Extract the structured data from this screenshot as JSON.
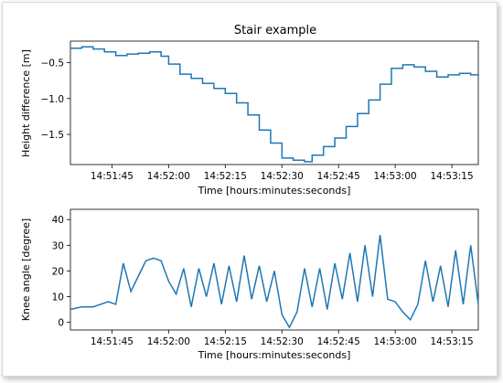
{
  "chart_data": [
    {
      "type": "line",
      "title": "Stair example",
      "xlabel": "Time [hours:minutes:seconds]",
      "ylabel": "Height difference [m]",
      "x_range_seconds": [
        "14:51:34",
        "14:53:22"
      ],
      "ylim": [
        -1.92,
        -0.2
      ],
      "xticks": [
        "14:51:45",
        "14:52:00",
        "14:52:15",
        "14:52:30",
        "14:52:45",
        "14:53:00",
        "14:53:15"
      ],
      "yticks": [
        -0.5,
        -1.0,
        -1.5
      ],
      "ytick_labels": [
        "−0.5",
        "−1.0",
        "−1.5"
      ],
      "grid": false,
      "color": "#1f77b4",
      "x": [
        "14:51:34",
        "14:51:37",
        "14:51:40",
        "14:51:43",
        "14:51:46",
        "14:51:49",
        "14:51:52",
        "14:51:55",
        "14:51:58",
        "14:52:00",
        "14:52:03",
        "14:52:06",
        "14:52:09",
        "14:52:12",
        "14:52:15",
        "14:52:18",
        "14:52:21",
        "14:52:24",
        "14:52:27",
        "14:52:30",
        "14:52:33",
        "14:52:36",
        "14:52:38",
        "14:52:41",
        "14:52:44",
        "14:52:47",
        "14:52:50",
        "14:52:53",
        "14:52:56",
        "14:52:59",
        "14:53:02",
        "14:53:05",
        "14:53:08",
        "14:53:11",
        "14:53:14",
        "14:53:17",
        "14:53:20",
        "14:53:22"
      ],
      "y": [
        -0.3,
        -0.28,
        -0.31,
        -0.35,
        -0.4,
        -0.38,
        -0.37,
        -0.35,
        -0.41,
        -0.52,
        -0.66,
        -0.72,
        -0.79,
        -0.86,
        -0.93,
        -1.06,
        -1.23,
        -1.44,
        -1.62,
        -1.83,
        -1.86,
        -1.88,
        -1.79,
        -1.67,
        -1.55,
        -1.39,
        -1.21,
        -1.02,
        -0.8,
        -0.58,
        -0.53,
        -0.56,
        -0.62,
        -0.7,
        -0.67,
        -0.65,
        -0.67,
        -0.69
      ]
    },
    {
      "type": "line",
      "title": "",
      "xlabel": "Time [hours:minutes:seconds]",
      "ylabel": "Knee angle [degree]",
      "x_range_seconds": [
        "14:51:34",
        "14:53:22"
      ],
      "ylim": [
        -3,
        44
      ],
      "xticks": [
        "14:51:45",
        "14:52:00",
        "14:52:15",
        "14:52:30",
        "14:52:45",
        "14:53:00",
        "14:53:15"
      ],
      "yticks": [
        0,
        10,
        20,
        30,
        40
      ],
      "ytick_labels": [
        "0",
        "10",
        "20",
        "30",
        "40"
      ],
      "grid": false,
      "color": "#1f77b4",
      "x": [
        "14:51:34",
        "14:51:37",
        "14:51:40",
        "14:51:42",
        "14:51:44",
        "14:51:46",
        "14:51:48",
        "14:51:50",
        "14:51:52",
        "14:51:54",
        "14:51:56",
        "14:51:58",
        "14:52:00",
        "14:52:02",
        "14:52:04",
        "14:52:06",
        "14:52:08",
        "14:52:10",
        "14:52:12",
        "14:52:14",
        "14:52:16",
        "14:52:18",
        "14:52:20",
        "14:52:22",
        "14:52:24",
        "14:52:26",
        "14:52:28",
        "14:52:30",
        "14:52:32",
        "14:52:34",
        "14:52:36",
        "14:52:38",
        "14:52:40",
        "14:52:42",
        "14:52:44",
        "14:52:46",
        "14:52:48",
        "14:52:50",
        "14:52:52",
        "14:52:54",
        "14:52:56",
        "14:52:58",
        "14:53:00",
        "14:53:02",
        "14:53:04",
        "14:53:06",
        "14:53:08",
        "14:53:10",
        "14:53:12",
        "14:53:14",
        "14:53:16",
        "14:53:18",
        "14:53:20",
        "14:53:22"
      ],
      "y": [
        5,
        6,
        6,
        7,
        8,
        7,
        23,
        12,
        18,
        24,
        25,
        24,
        16,
        11,
        21,
        6,
        21,
        10,
        23,
        7,
        22,
        8,
        26,
        9,
        22,
        8,
        20,
        3,
        -2,
        4,
        21,
        6,
        21,
        5,
        23,
        9,
        27,
        8,
        30,
        10,
        34,
        9,
        8,
        4,
        1,
        7,
        24,
        8,
        22,
        6,
        28,
        7,
        30,
        7
      ]
    }
  ]
}
